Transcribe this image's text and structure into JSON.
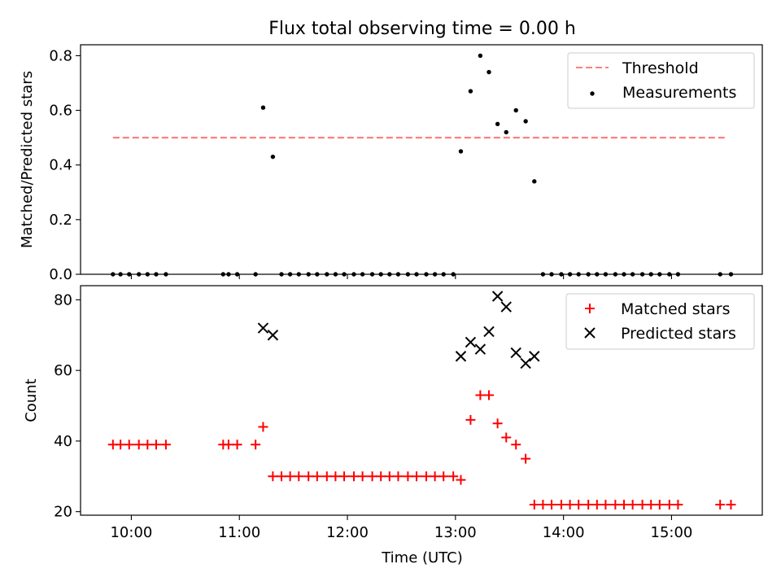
{
  "title": "Flux total observing time = 0.00 h",
  "xlabel": "Time (UTC)",
  "xticks": [
    {
      "label": "10:00",
      "value": 10.0
    },
    {
      "label": "11:00",
      "value": 11.0
    },
    {
      "label": "12:00",
      "value": 12.0
    },
    {
      "label": "13:00",
      "value": 13.0
    },
    {
      "label": "14:00",
      "value": 14.0
    },
    {
      "label": "15:00",
      "value": 15.0
    }
  ],
  "colors": {
    "threshold": "#ff7f7f",
    "measurements": "#000000",
    "matched": "#ff0000",
    "predicted": "#000000"
  },
  "chart_data": [
    {
      "type": "scatter",
      "ylabel": "Matched/Predicted stars",
      "xlim": [
        9.53,
        15.84
      ],
      "ylim": [
        0.0,
        0.84
      ],
      "yticks": [
        "0.0",
        "0.2",
        "0.4",
        "0.6",
        "0.8"
      ],
      "legend_position": "top-right",
      "threshold": {
        "name": "Threshold",
        "y": 0.5,
        "x_range": [
          9.83,
          15.5
        ]
      },
      "series": [
        {
          "name": "Measurements",
          "marker": "dot",
          "points": [
            [
              9.83,
              0
            ],
            [
              9.9,
              0
            ],
            [
              9.98,
              0
            ],
            [
              10.07,
              0
            ],
            [
              10.15,
              0
            ],
            [
              10.23,
              0
            ],
            [
              10.32,
              0
            ],
            [
              10.85,
              0
            ],
            [
              10.9,
              0
            ],
            [
              10.98,
              0
            ],
            [
              11.15,
              0
            ],
            [
              11.22,
              0.61
            ],
            [
              11.31,
              0.43
            ],
            [
              11.39,
              0
            ],
            [
              11.47,
              0
            ],
            [
              11.55,
              0
            ],
            [
              11.64,
              0
            ],
            [
              11.72,
              0
            ],
            [
              11.81,
              0
            ],
            [
              11.89,
              0
            ],
            [
              11.97,
              0
            ],
            [
              12.06,
              0
            ],
            [
              12.14,
              0
            ],
            [
              12.23,
              0
            ],
            [
              12.31,
              0
            ],
            [
              12.39,
              0
            ],
            [
              12.47,
              0
            ],
            [
              12.56,
              0
            ],
            [
              12.64,
              0
            ],
            [
              12.73,
              0
            ],
            [
              12.81,
              0
            ],
            [
              12.89,
              0
            ],
            [
              12.98,
              0
            ],
            [
              13.05,
              0.45
            ],
            [
              13.14,
              0.67
            ],
            [
              13.23,
              0.8
            ],
            [
              13.31,
              0.74
            ],
            [
              13.39,
              0.55
            ],
            [
              13.47,
              0.52
            ],
            [
              13.56,
              0.6
            ],
            [
              13.65,
              0.56
            ],
            [
              13.73,
              0.34
            ],
            [
              13.81,
              0
            ],
            [
              13.89,
              0
            ],
            [
              13.98,
              0
            ],
            [
              14.06,
              0
            ],
            [
              14.14,
              0
            ],
            [
              14.23,
              0
            ],
            [
              14.31,
              0
            ],
            [
              14.39,
              0
            ],
            [
              14.48,
              0
            ],
            [
              14.56,
              0
            ],
            [
              14.64,
              0
            ],
            [
              14.73,
              0
            ],
            [
              14.81,
              0
            ],
            [
              14.89,
              0
            ],
            [
              14.98,
              0
            ],
            [
              15.06,
              0
            ],
            [
              15.45,
              0
            ],
            [
              15.55,
              0
            ]
          ]
        }
      ]
    },
    {
      "type": "scatter",
      "ylabel": "Count",
      "xlim": [
        9.53,
        15.84
      ],
      "ylim": [
        19,
        84
      ],
      "yticks": [
        "20",
        "40",
        "60",
        "80"
      ],
      "legend_position": "top-right",
      "series": [
        {
          "name": "Matched stars",
          "marker": "plus",
          "points": [
            [
              9.83,
              39
            ],
            [
              9.9,
              39
            ],
            [
              9.98,
              39
            ],
            [
              10.07,
              39
            ],
            [
              10.15,
              39
            ],
            [
              10.23,
              39
            ],
            [
              10.32,
              39
            ],
            [
              10.85,
              39
            ],
            [
              10.9,
              39
            ],
            [
              10.98,
              39
            ],
            [
              11.15,
              39
            ],
            [
              11.22,
              44
            ],
            [
              11.31,
              30
            ],
            [
              11.39,
              30
            ],
            [
              11.47,
              30
            ],
            [
              11.55,
              30
            ],
            [
              11.64,
              30
            ],
            [
              11.72,
              30
            ],
            [
              11.81,
              30
            ],
            [
              11.89,
              30
            ],
            [
              11.97,
              30
            ],
            [
              12.06,
              30
            ],
            [
              12.14,
              30
            ],
            [
              12.23,
              30
            ],
            [
              12.31,
              30
            ],
            [
              12.39,
              30
            ],
            [
              12.47,
              30
            ],
            [
              12.56,
              30
            ],
            [
              12.64,
              30
            ],
            [
              12.73,
              30
            ],
            [
              12.81,
              30
            ],
            [
              12.89,
              30
            ],
            [
              12.98,
              30
            ],
            [
              13.05,
              29
            ],
            [
              13.14,
              46
            ],
            [
              13.23,
              53
            ],
            [
              13.31,
              53
            ],
            [
              13.39,
              45
            ],
            [
              13.47,
              41
            ],
            [
              13.56,
              39
            ],
            [
              13.65,
              35
            ],
            [
              13.73,
              22
            ],
            [
              13.81,
              22
            ],
            [
              13.89,
              22
            ],
            [
              13.98,
              22
            ],
            [
              14.06,
              22
            ],
            [
              14.14,
              22
            ],
            [
              14.23,
              22
            ],
            [
              14.31,
              22
            ],
            [
              14.39,
              22
            ],
            [
              14.48,
              22
            ],
            [
              14.56,
              22
            ],
            [
              14.64,
              22
            ],
            [
              14.73,
              22
            ],
            [
              14.81,
              22
            ],
            [
              14.89,
              22
            ],
            [
              14.98,
              22
            ],
            [
              15.06,
              22
            ],
            [
              15.45,
              22
            ],
            [
              15.55,
              22
            ]
          ]
        },
        {
          "name": "Predicted stars",
          "marker": "x",
          "points": [
            [
              11.22,
              72
            ],
            [
              11.31,
              70
            ],
            [
              13.05,
              64
            ],
            [
              13.14,
              68
            ],
            [
              13.23,
              66
            ],
            [
              13.31,
              71
            ],
            [
              13.39,
              81
            ],
            [
              13.47,
              78
            ],
            [
              13.56,
              65
            ],
            [
              13.65,
              62
            ],
            [
              13.73,
              64
            ]
          ]
        }
      ]
    }
  ]
}
